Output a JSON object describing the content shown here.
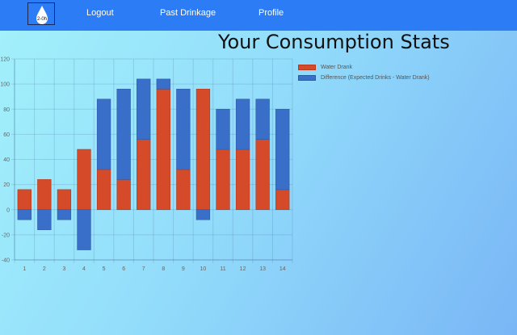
{
  "nav": {
    "logo_text": "2-0h",
    "logout": "Logout",
    "past": "Past Drinkage",
    "profile": "Profile"
  },
  "page_title": "Your Consumption Stats",
  "colors": {
    "water": "#d54a28",
    "difference": "#3a6fc9",
    "navbar": "#2c7cf6"
  },
  "chart_data": {
    "type": "bar",
    "stacked": true,
    "categories": [
      "1",
      "2",
      "3",
      "4",
      "5",
      "6",
      "7",
      "8",
      "9",
      "10",
      "11",
      "12",
      "13",
      "14"
    ],
    "series": [
      {
        "name": "Water Drank",
        "values": [
          16,
          24,
          16,
          48,
          32,
          24,
          56,
          96,
          32,
          96,
          48,
          48,
          56,
          16
        ]
      },
      {
        "name": "Difference (Expected Drinks - Water Drank)",
        "values": [
          -8,
          -16,
          -8,
          -32,
          56,
          72,
          48,
          8,
          64,
          -8,
          32,
          40,
          32,
          64
        ]
      }
    ],
    "ylim": [
      -40,
      120
    ],
    "yticks": [
      -40,
      -20,
      0,
      20,
      40,
      60,
      80,
      100,
      120
    ],
    "grid": true,
    "legend_position": "top-right"
  }
}
